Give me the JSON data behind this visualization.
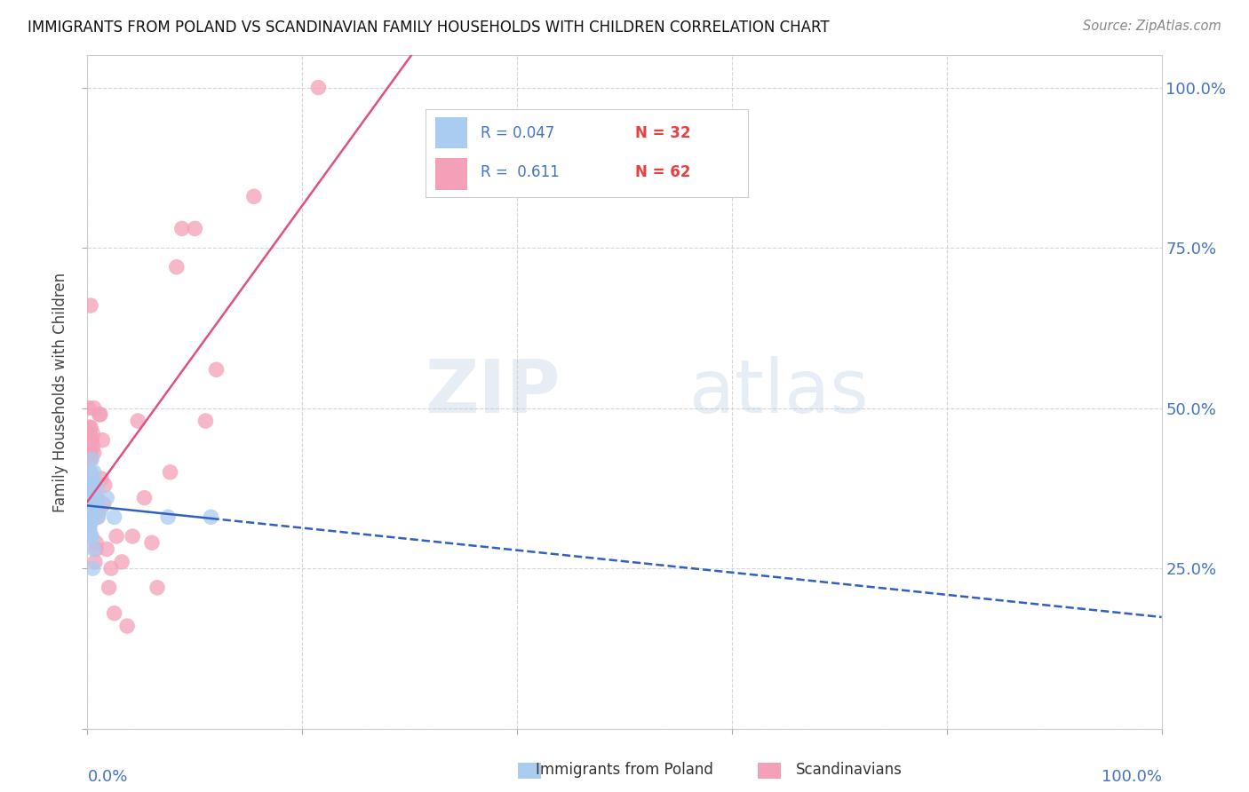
{
  "title": "IMMIGRANTS FROM POLAND VS SCANDINAVIAN FAMILY HOUSEHOLDS WITH CHILDREN CORRELATION CHART",
  "source": "Source: ZipAtlas.com",
  "ylabel": "Family Households with Children",
  "watermark_part1": "ZIP",
  "watermark_part2": "atlas",
  "poland_color": "#aaccf0",
  "poland_edge_color": "#aaccf0",
  "scand_color": "#f4a0b8",
  "scand_edge_color": "#f4a0b8",
  "poland_line_color": "#3060c0",
  "scand_line_color": "#e05080",
  "poland_R": 0.047,
  "poland_N": 32,
  "scand_R": 0.611,
  "scand_N": 62,
  "poland_x": [
    0.001,
    0.001,
    0.002,
    0.002,
    0.002,
    0.002,
    0.003,
    0.003,
    0.003,
    0.003,
    0.003,
    0.003,
    0.003,
    0.004,
    0.004,
    0.004,
    0.004,
    0.004,
    0.005,
    0.005,
    0.005,
    0.006,
    0.006,
    0.007,
    0.008,
    0.009,
    0.01,
    0.012,
    0.018,
    0.025,
    0.075,
    0.115
  ],
  "poland_y": [
    0.33,
    0.31,
    0.36,
    0.34,
    0.35,
    0.32,
    0.38,
    0.3,
    0.37,
    0.33,
    0.36,
    0.32,
    0.4,
    0.35,
    0.38,
    0.3,
    0.42,
    0.38,
    0.25,
    0.35,
    0.38,
    0.4,
    0.28,
    0.35,
    0.36,
    0.38,
    0.33,
    0.34,
    0.36,
    0.33,
    0.33,
    0.33
  ],
  "scand_x": [
    0.001,
    0.001,
    0.001,
    0.001,
    0.001,
    0.002,
    0.002,
    0.002,
    0.002,
    0.002,
    0.002,
    0.002,
    0.002,
    0.002,
    0.003,
    0.003,
    0.003,
    0.003,
    0.003,
    0.003,
    0.003,
    0.003,
    0.004,
    0.004,
    0.004,
    0.005,
    0.005,
    0.006,
    0.006,
    0.007,
    0.007,
    0.008,
    0.008,
    0.009,
    0.009,
    0.01,
    0.011,
    0.012,
    0.013,
    0.014,
    0.015,
    0.016,
    0.018,
    0.02,
    0.022,
    0.025,
    0.027,
    0.032,
    0.037,
    0.042,
    0.047,
    0.053,
    0.06,
    0.065,
    0.077,
    0.083,
    0.088,
    0.1,
    0.11,
    0.12,
    0.155,
    0.215
  ],
  "scand_y": [
    0.33,
    0.5,
    0.35,
    0.32,
    0.36,
    0.46,
    0.47,
    0.4,
    0.31,
    0.42,
    0.37,
    0.46,
    0.43,
    0.37,
    0.66,
    0.35,
    0.38,
    0.37,
    0.38,
    0.42,
    0.43,
    0.47,
    0.45,
    0.33,
    0.45,
    0.46,
    0.44,
    0.43,
    0.5,
    0.35,
    0.26,
    0.29,
    0.28,
    0.33,
    0.36,
    0.34,
    0.49,
    0.49,
    0.39,
    0.45,
    0.35,
    0.38,
    0.28,
    0.22,
    0.25,
    0.18,
    0.3,
    0.26,
    0.16,
    0.3,
    0.48,
    0.36,
    0.29,
    0.22,
    0.4,
    0.72,
    0.78,
    0.78,
    0.48,
    0.56,
    0.83,
    1.0
  ],
  "xlim": [
    0.0,
    1.0
  ],
  "ylim": [
    0.0,
    1.05
  ],
  "yticks": [
    0.0,
    0.25,
    0.5,
    0.75,
    1.0
  ],
  "yticklabels_right": [
    "",
    "25.0%",
    "50.0%",
    "75.0%",
    "100.0%"
  ],
  "xticklabels_bottom": [
    "0.0%",
    "100.0%"
  ],
  "grid_color": "#cccccc",
  "grid_alpha": 0.8,
  "right_axis_color": "#4472c4",
  "legend_R_color": "#4472c4",
  "legend_N_color": "#e84040",
  "bottom_label_poland": "Immigrants from Poland",
  "bottom_label_scand": "Scandinavians"
}
